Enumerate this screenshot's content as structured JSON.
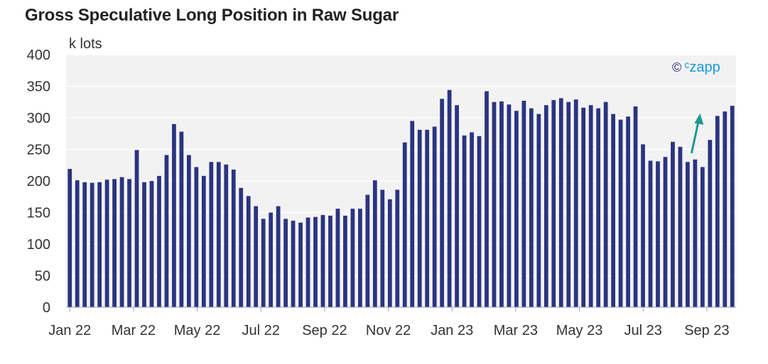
{
  "title": "Gross Speculative Long Position in Raw Sugar",
  "unit_label": "k lots",
  "brand": {
    "symbol": "©",
    "name": "ᶜzapp"
  },
  "colors": {
    "bar": "#2b3480",
    "plot_bg": "#f2f2f2",
    "grid": "#ffffff",
    "arrow": "#1f9a8f",
    "brand": "#1a9ad6"
  },
  "chart_data": {
    "type": "bar",
    "title": "Gross Speculative Long Position in Raw Sugar",
    "ylabel": "k lots",
    "ylim": [
      0,
      400
    ],
    "yticks": [
      0,
      50,
      100,
      150,
      200,
      250,
      300,
      350,
      400
    ],
    "xtick_labels": [
      "Jan 22",
      "Mar 22",
      "May 22",
      "Jul 22",
      "Sep 22",
      "Nov 22",
      "Jan 23",
      "Mar 23",
      "May 23",
      "Jul 23",
      "Sep 23"
    ],
    "grid": true,
    "values": [
      219,
      201,
      198,
      197,
      198,
      202,
      203,
      206,
      203,
      249,
      198,
      200,
      208,
      241,
      290,
      278,
      241,
      222,
      208,
      230,
      230,
      226,
      218,
      189,
      176,
      160,
      140,
      150,
      160,
      140,
      137,
      134,
      142,
      143,
      146,
      145,
      156,
      145,
      156,
      156,
      178,
      201,
      186,
      171,
      186,
      261,
      295,
      281,
      281,
      286,
      330,
      344,
      320,
      272,
      277,
      271,
      342,
      325,
      326,
      321,
      311,
      327,
      315,
      306,
      320,
      328,
      331,
      325,
      329,
      316,
      320,
      315,
      325,
      306,
      297,
      302,
      318,
      258,
      232,
      231,
      238,
      262,
      254,
      230,
      234,
      222,
      265,
      303,
      310,
      319
    ],
    "annotation": {
      "type": "arrow",
      "direction": "up",
      "color": "#1f9a8f"
    }
  }
}
